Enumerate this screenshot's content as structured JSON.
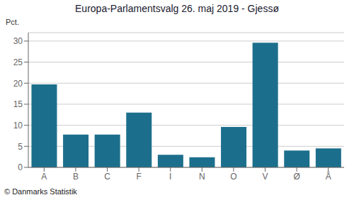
{
  "chart_data": {
    "type": "bar",
    "title": "Europa-Parlamentsvalg 26. maj 2019 - Gjessø",
    "categories": [
      "A",
      "B",
      "C",
      "F",
      "I",
      "N",
      "O",
      "V",
      "Ø",
      "Å"
    ],
    "values": [
      19.7,
      7.8,
      7.8,
      13.0,
      3.0,
      2.4,
      9.6,
      29.6,
      4.0,
      4.5
    ],
    "color": "#1c6f8c",
    "ylim": [
      0,
      32
    ],
    "yticks": [
      0,
      5,
      10,
      15,
      20,
      25,
      30
    ],
    "ylabel": "Pct.",
    "annotations": [
      "© Danmarks Statistik"
    ],
    "grid": true
  }
}
